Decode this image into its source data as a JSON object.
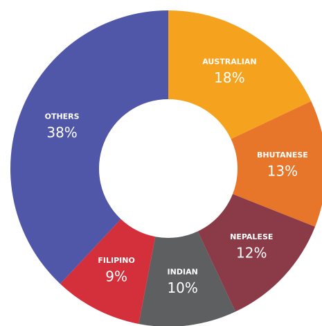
{
  "chart_data": {
    "type": "donut",
    "categories": [
      "AUSTRALIAN",
      "BHUTANESE",
      "NEPALESE",
      "INDIAN",
      "FILIPINO",
      "OTHERS"
    ],
    "values": [
      18,
      13,
      12,
      10,
      9,
      38
    ],
    "value_labels": [
      "18%",
      "13%",
      "12%",
      "10%",
      "9%",
      "38%"
    ],
    "colors": [
      "#f5a31e",
      "#e8762a",
      "#8b3a48",
      "#5e5f61",
      "#d3303b",
      "#5157a8"
    ]
  }
}
